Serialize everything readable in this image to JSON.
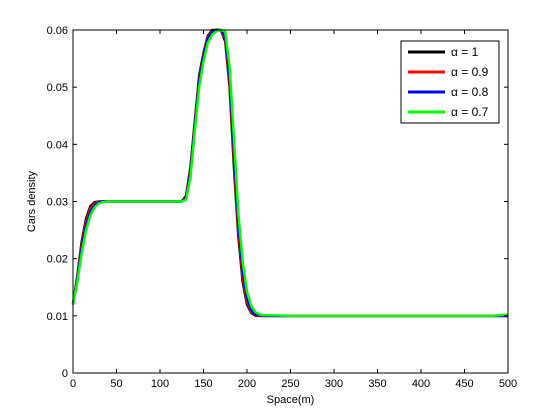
{
  "chart_data": {
    "type": "line",
    "title": "",
    "xlabel": "Space(m)",
    "ylabel": "Cars density",
    "xlim": [
      0,
      500
    ],
    "ylim": [
      0,
      0.06
    ],
    "xticks": [
      0,
      50,
      100,
      150,
      200,
      250,
      300,
      350,
      400,
      450,
      500
    ],
    "xtick_labels": [
      "0",
      "50",
      "100",
      "150",
      "200",
      "250",
      "300",
      "350",
      "400",
      "450",
      "500"
    ],
    "yticks": [
      0,
      0.01,
      0.02,
      0.03,
      0.04,
      0.05,
      0.06
    ],
    "ytick_labels": [
      "0",
      "0.01",
      "0.02",
      "0.03",
      "0.04",
      "0.05",
      "0.06"
    ],
    "grid": false,
    "legend_position": "top-right",
    "series": [
      {
        "name": "α = 1",
        "color": "#000000",
        "x": [
          0,
          5,
          10,
          15,
          20,
          25,
          30,
          35,
          40,
          100,
          125,
          130,
          135,
          140,
          145,
          150,
          155,
          160,
          165,
          170,
          175,
          180,
          185,
          190,
          195,
          200,
          205,
          210,
          215,
          220,
          250,
          300,
          400,
          500
        ],
        "y": [
          0.012,
          0.017,
          0.023,
          0.027,
          0.0292,
          0.0299,
          0.03,
          0.03,
          0.03,
          0.03,
          0.03,
          0.031,
          0.036,
          0.044,
          0.052,
          0.056,
          0.059,
          0.06,
          0.06,
          0.06,
          0.058,
          0.05,
          0.036,
          0.024,
          0.016,
          0.012,
          0.0105,
          0.01,
          0.01,
          0.01,
          0.01,
          0.01,
          0.01,
          0.01
        ]
      },
      {
        "name": "α = 0.9",
        "color": "#ff0000",
        "x": [
          0,
          5,
          10,
          15,
          20,
          25,
          30,
          35,
          40,
          100,
          125,
          130,
          135,
          140,
          145,
          150,
          155,
          160,
          165,
          170,
          175,
          180,
          185,
          190,
          195,
          200,
          205,
          210,
          215,
          220,
          250,
          300,
          400,
          500
        ],
        "y": [
          0.012,
          0.0168,
          0.0225,
          0.0265,
          0.0288,
          0.0297,
          0.03,
          0.03,
          0.03,
          0.03,
          0.03,
          0.0308,
          0.0355,
          0.0435,
          0.0515,
          0.0557,
          0.0588,
          0.0598,
          0.06,
          0.06,
          0.0585,
          0.0508,
          0.0375,
          0.025,
          0.0168,
          0.0125,
          0.0107,
          0.0101,
          0.01,
          0.01,
          0.01,
          0.01,
          0.01,
          0.01
        ]
      },
      {
        "name": "α = 0.8",
        "color": "#0000ff",
        "x": [
          0,
          5,
          10,
          15,
          20,
          25,
          30,
          35,
          40,
          100,
          125,
          130,
          135,
          140,
          145,
          150,
          155,
          160,
          165,
          170,
          175,
          180,
          185,
          190,
          195,
          200,
          205,
          210,
          215,
          220,
          250,
          300,
          400,
          500
        ],
        "y": [
          0.012,
          0.0165,
          0.0218,
          0.0258,
          0.0282,
          0.0294,
          0.0299,
          0.03,
          0.03,
          0.03,
          0.03,
          0.0306,
          0.035,
          0.043,
          0.051,
          0.0553,
          0.0585,
          0.0596,
          0.06,
          0.06,
          0.059,
          0.052,
          0.039,
          0.0265,
          0.018,
          0.0132,
          0.011,
          0.0102,
          0.0101,
          0.01,
          0.01,
          0.01,
          0.01,
          0.01
        ]
      },
      {
        "name": "α = 0.7",
        "color": "#00ff00",
        "x": [
          0,
          5,
          10,
          15,
          20,
          25,
          30,
          35,
          40,
          100,
          125,
          130,
          135,
          140,
          145,
          150,
          155,
          160,
          165,
          170,
          175,
          180,
          185,
          190,
          195,
          200,
          205,
          210,
          215,
          220,
          230,
          250,
          300,
          400,
          480,
          500
        ],
        "y": [
          0.012,
          0.016,
          0.021,
          0.025,
          0.0276,
          0.029,
          0.0297,
          0.0299,
          0.03,
          0.03,
          0.03,
          0.0303,
          0.0343,
          0.0423,
          0.05,
          0.0545,
          0.0578,
          0.0592,
          0.0598,
          0.06,
          0.0597,
          0.0535,
          0.041,
          0.028,
          0.0195,
          0.0142,
          0.0117,
          0.0106,
          0.0102,
          0.0101,
          0.0101,
          0.01,
          0.01,
          0.01,
          0.01,
          0.0102
        ]
      }
    ]
  }
}
